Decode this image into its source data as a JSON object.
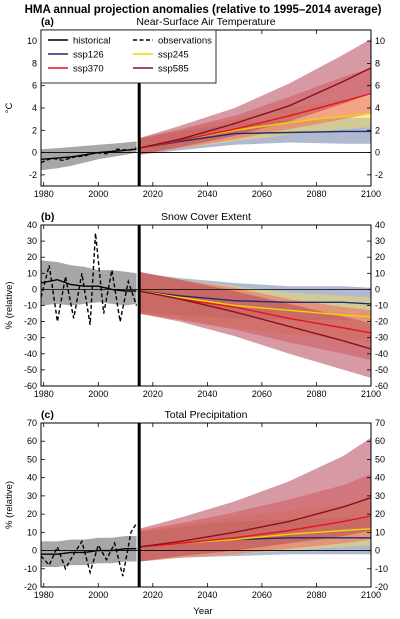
{
  "figure": {
    "title": "HMA annual projection anomalies (relative to 1995–2014 average)",
    "xlabel": "Year"
  },
  "colors": {
    "historical": "#000000",
    "observations": "#000000",
    "ssp126": "#1f2d6b",
    "ssp245": "#f0d400",
    "ssp370": "#e8131a",
    "ssp585": "#8b0f22",
    "historical_band": "#8a8a8a",
    "ssp126_band": "#6f7fa8",
    "ssp245_band": "#eed967",
    "ssp370_band": "#ee6a62",
    "ssp585_band": "#b7475a"
  },
  "legend": [
    {
      "key": "historical",
      "label": "historical",
      "style": "solid"
    },
    {
      "key": "observations",
      "label": "observations",
      "style": "dashed"
    },
    {
      "key": "ssp126",
      "label": "ssp126",
      "style": "solid"
    },
    {
      "key": "ssp245",
      "label": "ssp245",
      "style": "solid"
    },
    {
      "key": "ssp370",
      "label": "ssp370",
      "style": "solid"
    },
    {
      "key": "ssp585",
      "label": "ssp585",
      "style": "solid"
    }
  ],
  "chart_data": [
    {
      "panel": "(a)",
      "type": "line",
      "title": "Near-Surface Air Temperature",
      "ylabel": "°C",
      "xlim": [
        1979,
        2100
      ],
      "ylim": [
        -3,
        11
      ],
      "yticks": [
        -2,
        0,
        2,
        4,
        6,
        8,
        10
      ],
      "xticks": [
        1980,
        2000,
        2020,
        2040,
        2060,
        2080,
        2100
      ],
      "scenario_start": 2015,
      "series": [
        {
          "name": "historical",
          "x": [
            1979,
            1985,
            1990,
            1995,
            2000,
            2005,
            2010,
            2014
          ],
          "values": [
            -0.6,
            -0.5,
            -0.4,
            -0.2,
            0.0,
            0.1,
            0.2,
            0.3
          ],
          "band_lo": [
            -1.6,
            -1.4,
            -1.2,
            -0.9,
            -0.6,
            -0.4,
            -0.2,
            0.0
          ],
          "band_hi": [
            0.3,
            0.4,
            0.5,
            0.6,
            0.7,
            0.8,
            0.9,
            1.0
          ]
        },
        {
          "name": "observations",
          "x": [
            1979,
            1983,
            1987,
            1991,
            1995,
            1999,
            2003,
            2007,
            2011,
            2014
          ],
          "values": [
            -0.9,
            -0.5,
            -0.7,
            -0.4,
            -0.3,
            0.0,
            -0.1,
            0.3,
            0.2,
            0.4
          ]
        },
        {
          "name": "ssp126",
          "x": [
            2015,
            2030,
            2050,
            2070,
            2090,
            2100
          ],
          "values": [
            0.4,
            1.0,
            1.7,
            1.8,
            1.9,
            1.9
          ],
          "band_lo": [
            -0.2,
            0.2,
            0.7,
            0.9,
            0.8,
            0.8
          ],
          "band_hi": [
            1.2,
            1.9,
            2.6,
            2.9,
            3.1,
            3.1
          ]
        },
        {
          "name": "ssp245",
          "x": [
            2015,
            2030,
            2050,
            2070,
            2090,
            2100
          ],
          "values": [
            0.4,
            1.1,
            2.0,
            2.7,
            3.3,
            3.5
          ],
          "band_lo": [
            -0.2,
            0.4,
            1.0,
            1.6,
            2.1,
            2.3
          ],
          "band_hi": [
            1.2,
            2.0,
            3.0,
            4.0,
            4.8,
            5.1
          ]
        },
        {
          "name": "ssp370",
          "x": [
            2015,
            2030,
            2050,
            2070,
            2090,
            2100
          ],
          "values": [
            0.4,
            1.1,
            2.1,
            3.3,
            4.6,
            5.3
          ],
          "band_lo": [
            -0.2,
            0.4,
            1.2,
            2.1,
            3.0,
            3.5
          ],
          "band_hi": [
            1.3,
            2.1,
            3.3,
            5.0,
            6.8,
            7.6
          ]
        },
        {
          "name": "ssp585",
          "x": [
            2015,
            2030,
            2050,
            2070,
            2090,
            2100
          ],
          "values": [
            0.4,
            1.2,
            2.6,
            4.2,
            6.4,
            7.6
          ],
          "band_lo": [
            -0.2,
            0.5,
            1.5,
            2.8,
            4.4,
            5.3
          ],
          "band_hi": [
            1.3,
            2.4,
            4.0,
            6.2,
            8.8,
            10.2
          ]
        }
      ]
    },
    {
      "panel": "(b)",
      "type": "line",
      "title": "Snow Cover Extent",
      "ylabel": "% (relative)",
      "xlim": [
        1979,
        2100
      ],
      "ylim": [
        -60,
        40
      ],
      "yticks": [
        -60,
        -50,
        -40,
        -30,
        -20,
        -10,
        0,
        10,
        20,
        30,
        40
      ],
      "xticks": [
        1980,
        2000,
        2020,
        2040,
        2060,
        2080,
        2100
      ],
      "scenario_start": 2015,
      "series": [
        {
          "name": "historical",
          "x": [
            1979,
            1985,
            1990,
            1995,
            2000,
            2005,
            2010,
            2014
          ],
          "values": [
            4,
            6,
            3,
            2,
            2,
            0,
            -1,
            -1
          ],
          "band_lo": [
            -10,
            -9,
            -10,
            -9,
            -8,
            -9,
            -10,
            -9
          ],
          "band_hi": [
            18,
            17,
            15,
            14,
            12,
            12,
            11,
            10
          ]
        },
        {
          "name": "observations",
          "x": [
            1979,
            1982,
            1985,
            1988,
            1991,
            1994,
            1997,
            1999,
            2002,
            2005,
            2008,
            2011,
            2014
          ],
          "values": [
            -5,
            15,
            -20,
            8,
            -18,
            10,
            -22,
            35,
            -15,
            12,
            -20,
            5,
            -10
          ]
        },
        {
          "name": "ssp126",
          "x": [
            2015,
            2030,
            2050,
            2070,
            2090,
            2100
          ],
          "values": [
            -1,
            -4,
            -7,
            -8,
            -8,
            -9
          ],
          "band_lo": [
            -14,
            -16,
            -18,
            -19,
            -19,
            -20
          ],
          "band_hi": [
            10,
            7,
            4,
            2,
            2,
            1
          ]
        },
        {
          "name": "ssp245",
          "x": [
            2015,
            2030,
            2050,
            2070,
            2090,
            2100
          ],
          "values": [
            -1,
            -5,
            -10,
            -13,
            -16,
            -17
          ],
          "band_lo": [
            -15,
            -18,
            -24,
            -28,
            -31,
            -33
          ],
          "band_hi": [
            10,
            6,
            2,
            -2,
            -4,
            -5
          ]
        },
        {
          "name": "ssp370",
          "x": [
            2015,
            2030,
            2050,
            2070,
            2090,
            2100
          ],
          "values": [
            -1,
            -6,
            -11,
            -18,
            -24,
            -27
          ],
          "band_lo": [
            -15,
            -19,
            -25,
            -33,
            -40,
            -44
          ],
          "band_hi": [
            11,
            6,
            1,
            -6,
            -11,
            -13
          ]
        },
        {
          "name": "ssp585",
          "x": [
            2015,
            2030,
            2050,
            2070,
            2090,
            2100
          ],
          "values": [
            -1,
            -6,
            -14,
            -23,
            -32,
            -37
          ],
          "band_lo": [
            -15,
            -20,
            -29,
            -40,
            -50,
            -55
          ],
          "band_hi": [
            11,
            6,
            -1,
            -9,
            -17,
            -21
          ]
        }
      ]
    },
    {
      "panel": "(c)",
      "type": "line",
      "title": "Total Precipitation",
      "ylabel": "% (relative)",
      "xlim": [
        1979,
        2100
      ],
      "ylim": [
        -20,
        70
      ],
      "yticks": [
        -20,
        -10,
        0,
        10,
        20,
        30,
        40,
        50,
        60,
        70
      ],
      "xticks": [
        1980,
        2000,
        2020,
        2040,
        2060,
        2080,
        2100
      ],
      "scenario_start": 2015,
      "series": [
        {
          "name": "historical",
          "x": [
            1979,
            1985,
            1990,
            1995,
            2000,
            2005,
            2010,
            2014
          ],
          "values": [
            -2,
            -2,
            -1,
            -1,
            0,
            0,
            1,
            1
          ],
          "band_lo": [
            -9,
            -9,
            -8,
            -8,
            -7,
            -7,
            -6,
            -6
          ],
          "band_hi": [
            5,
            5,
            6,
            6,
            7,
            7,
            8,
            8
          ]
        },
        {
          "name": "observations",
          "x": [
            1979,
            1982,
            1985,
            1988,
            1991,
            1994,
            1997,
            2000,
            2003,
            2006,
            2009,
            2012,
            2014
          ],
          "values": [
            -3,
            -8,
            2,
            -10,
            -2,
            5,
            -12,
            3,
            -5,
            4,
            -14,
            10,
            15
          ]
        },
        {
          "name": "ssp126",
          "x": [
            2015,
            2030,
            2050,
            2070,
            2090,
            2100
          ],
          "values": [
            2,
            4,
            6,
            7,
            7,
            7
          ],
          "band_lo": [
            -6,
            -4,
            -3,
            -2,
            -2,
            -2
          ],
          "band_hi": [
            10,
            13,
            16,
            17,
            18,
            18
          ]
        },
        {
          "name": "ssp245",
          "x": [
            2015,
            2030,
            2050,
            2070,
            2090,
            2100
          ],
          "values": [
            2,
            4,
            6,
            9,
            11,
            12
          ],
          "band_lo": [
            -6,
            -4,
            -2,
            0,
            2,
            3
          ],
          "band_hi": [
            10,
            14,
            18,
            22,
            25,
            27
          ]
        },
        {
          "name": "ssp370",
          "x": [
            2015,
            2030,
            2050,
            2070,
            2090,
            2100
          ],
          "values": [
            2,
            4,
            7,
            11,
            16,
            19
          ],
          "band_lo": [
            -6,
            -4,
            -2,
            1,
            4,
            6
          ],
          "band_hi": [
            11,
            15,
            21,
            28,
            36,
            42
          ]
        },
        {
          "name": "ssp585",
          "x": [
            2015,
            2030,
            2050,
            2070,
            2090,
            2100
          ],
          "values": [
            2,
            5,
            10,
            16,
            24,
            29
          ],
          "band_lo": [
            -6,
            -3,
            0,
            4,
            8,
            11
          ],
          "band_hi": [
            12,
            18,
            27,
            38,
            52,
            62
          ]
        }
      ]
    }
  ]
}
